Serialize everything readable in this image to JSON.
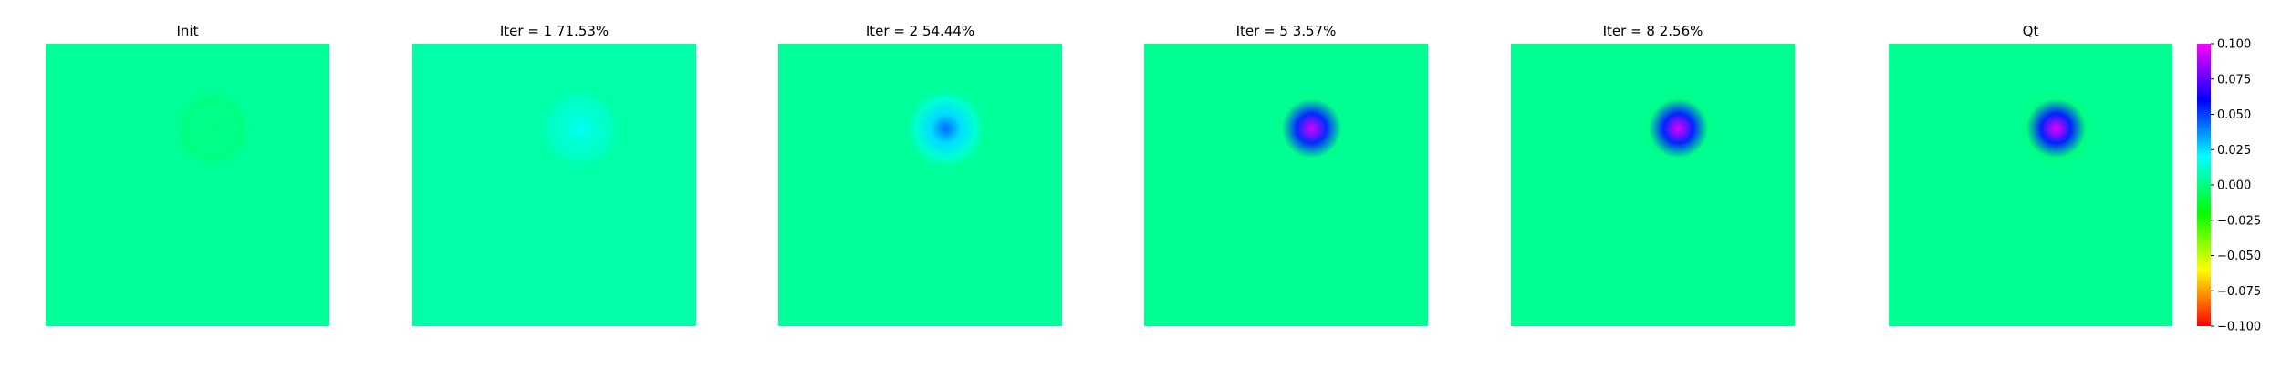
{
  "chart_data": {
    "type": "heatmap",
    "colormap": "gist_rainbow",
    "colorbar": {
      "vmin": -0.1,
      "vmax": 0.1,
      "ticks": [
        0.1,
        0.075,
        0.05,
        0.025,
        0.0,
        -0.025,
        -0.05,
        -0.075,
        -0.1
      ],
      "tick_labels": [
        "0.100",
        "0.075",
        "0.050",
        "0.025",
        "0.000",
        "−0.025",
        "−0.050",
        "−0.075",
        "−0.100"
      ]
    },
    "panels": [
      {
        "title": "Init",
        "peak_value": 0.0,
        "halo_value": 0.0,
        "background_value": 0.004
      },
      {
        "title": "Iter = 1    71.53%",
        "peak_value": 0.019,
        "halo_value": 0.011,
        "background_value": 0.006
      },
      {
        "title": "Iter = 2    54.44%",
        "peak_value": 0.043,
        "halo_value": 0.013,
        "background_value": 0.004
      },
      {
        "title": "Iter = 5    3.57%",
        "peak_value": 0.094,
        "halo_value": 0.002,
        "background_value": 0.003
      },
      {
        "title": "Iter = 8    2.56%",
        "peak_value": 0.096,
        "halo_value": 0.001,
        "background_value": 0.003
      },
      {
        "title": "Qt",
        "peak_value": 0.097,
        "halo_value": 0.0,
        "background_value": 0.003
      }
    ]
  }
}
